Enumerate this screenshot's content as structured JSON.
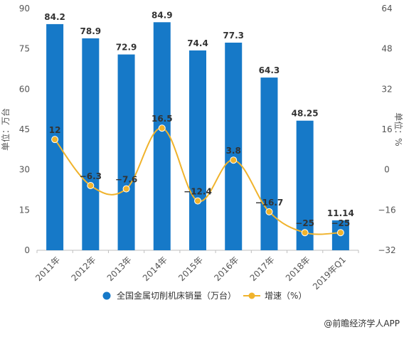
{
  "chart_data": {
    "type": "bar+line",
    "categories": [
      "2011年",
      "2012年",
      "2013年",
      "2014年",
      "2015年",
      "2016年",
      "2017年",
      "2018年",
      "2019年Q1"
    ],
    "series": [
      {
        "name": "全国金属切削机床销量（万台）",
        "type": "bar",
        "axis": "left",
        "color": "#1679c8",
        "values": [
          84.2,
          78.9,
          72.9,
          84.9,
          74.4,
          77.3,
          64.3,
          48.25,
          11.14
        ],
        "labels": [
          "84.2",
          "78.9",
          "72.9",
          "84.9",
          "74.4",
          "77.3",
          "64.3",
          "48.25",
          "11.14"
        ]
      },
      {
        "name": "增速（%）",
        "type": "line",
        "axis": "right",
        "color": "#f0b32c",
        "smooth": true,
        "values": [
          12,
          -6.3,
          -7.6,
          16.5,
          -12.4,
          3.8,
          -16.7,
          -25,
          -25
        ],
        "labels": [
          "12",
          "-6.3",
          "-7.6",
          "16.5",
          "-12.4",
          "3.8",
          "-16.7",
          "-25",
          "-25"
        ]
      }
    ],
    "y_left": {
      "label": "单位：万台",
      "min": 0,
      "max": 90,
      "ticks": [
        0,
        15,
        30,
        45,
        60,
        75,
        90
      ]
    },
    "y_right": {
      "label": "单位：%",
      "min": -32,
      "max": 64,
      "ticks": [
        -32,
        -16,
        0,
        16,
        32,
        48,
        64
      ]
    },
    "grid": false,
    "legend_position": "bottom",
    "source": "@前瞻经济学人APP"
  }
}
